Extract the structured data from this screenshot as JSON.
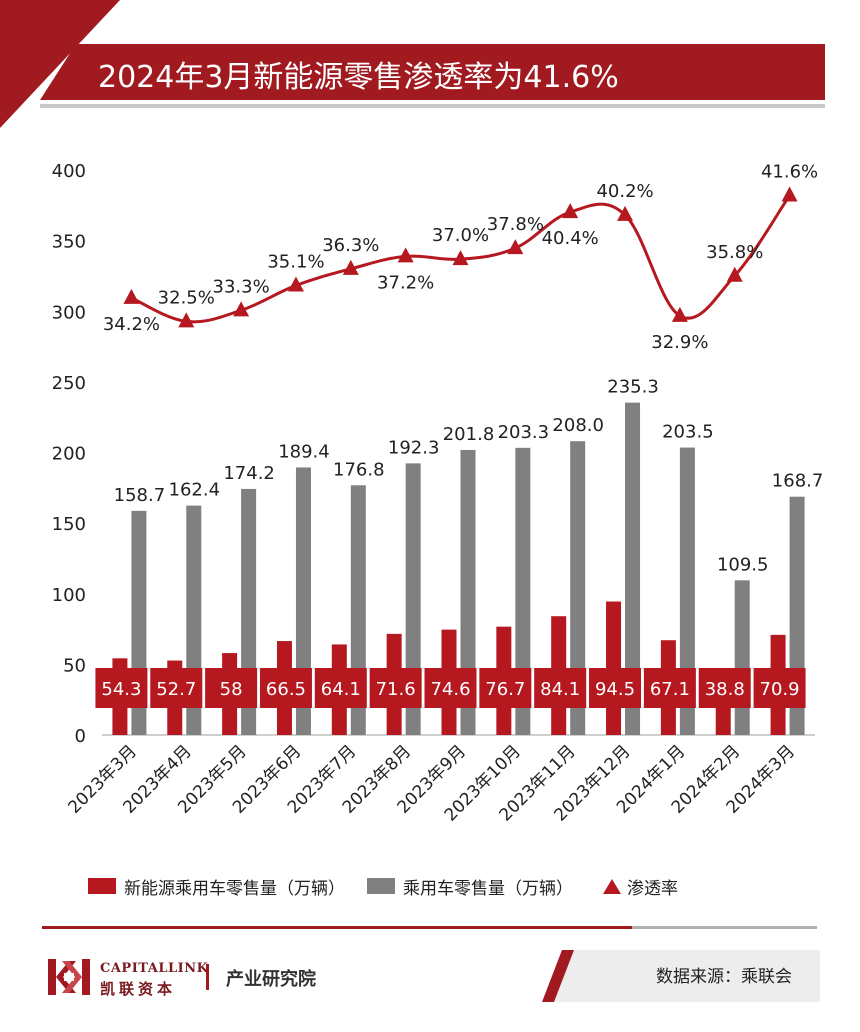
{
  "title": "2024年3月新能源零售渗透率为41.6%",
  "colors": {
    "nev": "#b5191f",
    "total": "#808080",
    "rate": "#b5191f",
    "brand": "#a01a20"
  },
  "chart_data": {
    "type": "bar",
    "categories": [
      "2023年3月",
      "2023年4月",
      "2023年5月",
      "2023年6月",
      "2023年7月",
      "2023年8月",
      "2023年9月",
      "2023年10月",
      "2023年11月",
      "2023年12月",
      "2024年1月",
      "2024年2月",
      "2024年3月"
    ],
    "series": [
      {
        "name": "新能源乘用车零售量（万辆）",
        "type": "bar",
        "color": "#b5191f",
        "values": [
          54.3,
          52.7,
          58,
          66.5,
          64.1,
          71.6,
          74.6,
          76.7,
          84.1,
          94.5,
          67.1,
          38.8,
          70.9
        ],
        "labels": [
          "54.3",
          "52.7",
          "58",
          "66.5",
          "64.1",
          "71.6",
          "74.6",
          "76.7",
          "84.1",
          "94.5",
          "67.1",
          "38.8",
          "70.9"
        ]
      },
      {
        "name": "乘用车零售量（万辆）",
        "type": "bar",
        "color": "#808080",
        "values": [
          158.7,
          162.4,
          174.2,
          189.4,
          176.8,
          192.3,
          201.8,
          203.3,
          208.0,
          235.3,
          203.5,
          109.5,
          168.7
        ],
        "labels": [
          "158.7",
          "162.4",
          "174.2",
          "189.4",
          "176.8",
          "192.3",
          "201.8",
          "203.3",
          "208.0",
          "235.3",
          "203.5",
          "109.5",
          "168.7"
        ]
      },
      {
        "name": "渗透率",
        "type": "line",
        "color": "#b5191f",
        "smooth": true,
        "marker": "triangle",
        "values": [
          34.2,
          32.5,
          33.3,
          35.1,
          36.3,
          37.2,
          37.0,
          37.8,
          40.4,
          40.2,
          32.9,
          35.8,
          41.6
        ],
        "labels": [
          "34.2%",
          "32.5%",
          "33.3%",
          "35.1%",
          "36.3%",
          "37.2%",
          "37.0%",
          "37.8%",
          "40.4%",
          "40.2%",
          "32.9%",
          "35.8%",
          "41.6%"
        ]
      }
    ],
    "yticks": [
      "0",
      "50",
      "100",
      "150",
      "200",
      "250",
      "300",
      "350",
      "400"
    ],
    "ylim": [
      0,
      400
    ],
    "grid": false,
    "legend": "bottom"
  },
  "footer": {
    "brand_en": "CAPITALLINK",
    "brand_cn": "凯联资本",
    "dept": "产业研究院",
    "source": "数据来源：乘联会"
  }
}
